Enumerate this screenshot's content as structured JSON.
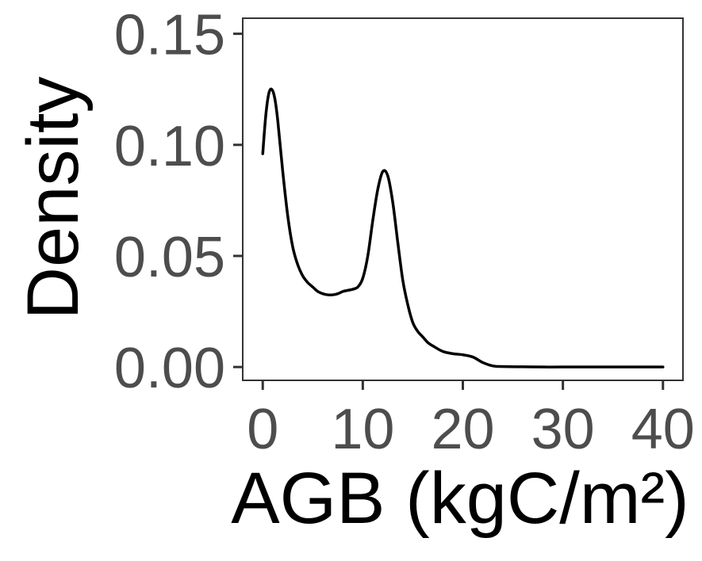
{
  "chart_data": {
    "type": "line",
    "title": "",
    "xlabel": "AGB (kgC/m²)",
    "ylabel": "Density",
    "xlim": [
      -2,
      42
    ],
    "ylim": [
      -0.006,
      0.157
    ],
    "x_ticks": [
      0,
      10,
      20,
      30,
      40
    ],
    "x_tick_labels": [
      "0",
      "10",
      "20",
      "30",
      "40"
    ],
    "y_ticks": [
      0,
      0.05,
      0.1,
      0.15
    ],
    "y_tick_labels": [
      "0.00",
      "0.05",
      "0.10",
      "0.15"
    ],
    "grid": false,
    "legend": "none",
    "series": [
      {
        "color": "#000000",
        "x": [
          0,
          0.3,
          0.6,
          0.9,
          1.2,
          1.5,
          2,
          2.5,
          3,
          3.5,
          4,
          4.5,
          5,
          5.5,
          6,
          6.5,
          7,
          7.5,
          8,
          8.5,
          9,
          9.5,
          10,
          10.5,
          11,
          11.5,
          12,
          12.5,
          13,
          13.5,
          14,
          14.5,
          15,
          15.5,
          16,
          16.5,
          17,
          18,
          19,
          20,
          21,
          22,
          23,
          24,
          26,
          28,
          30,
          34,
          38,
          40
        ],
        "y": [
          0.096,
          0.113,
          0.123,
          0.125,
          0.121,
          0.111,
          0.088,
          0.068,
          0.054,
          0.046,
          0.041,
          0.038,
          0.036,
          0.034,
          0.033,
          0.0325,
          0.0325,
          0.033,
          0.034,
          0.0345,
          0.035,
          0.036,
          0.04,
          0.05,
          0.066,
          0.08,
          0.088,
          0.086,
          0.074,
          0.056,
          0.039,
          0.028,
          0.02,
          0.016,
          0.0135,
          0.011,
          0.0095,
          0.007,
          0.006,
          0.0055,
          0.0045,
          0.002,
          0.0005,
          0.0002,
          0.0001,
          0,
          0,
          0,
          0,
          0
        ]
      }
    ]
  }
}
